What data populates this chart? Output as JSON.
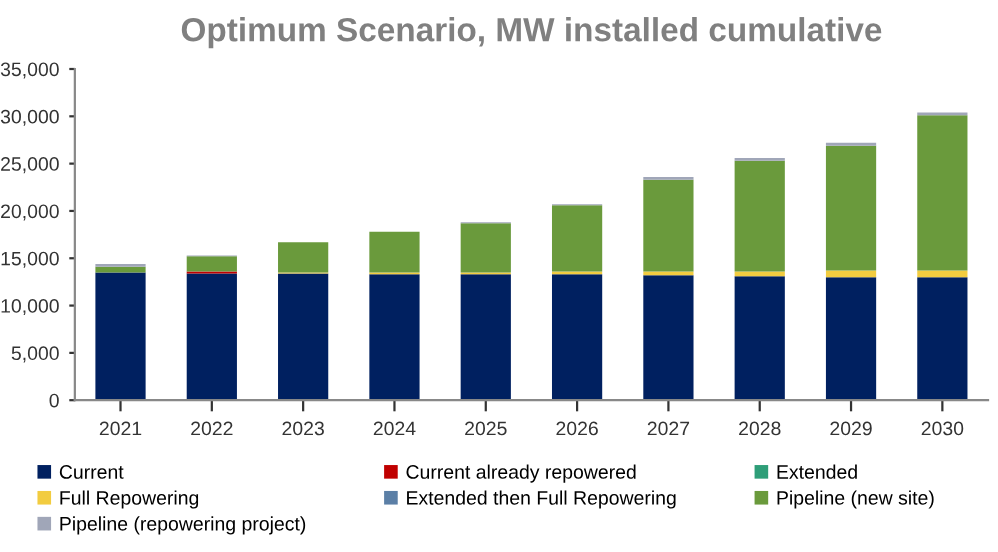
{
  "chart_data": {
    "type": "bar",
    "title": "Optimum Scenario, MW installed cumulative",
    "stacked": true,
    "categories": [
      "2021",
      "2022",
      "2023",
      "2024",
      "2025",
      "2026",
      "2027",
      "2028",
      "2029",
      "2030"
    ],
    "series": [
      {
        "name": "Current",
        "color": "#002060",
        "values": [
          13500,
          13400,
          13400,
          13300,
          13300,
          13300,
          13200,
          13100,
          13000,
          13000
        ]
      },
      {
        "name": "Current already repowered",
        "color": "#c00000",
        "values": [
          0,
          200,
          0,
          0,
          0,
          0,
          0,
          0,
          0,
          0
        ]
      },
      {
        "name": "Extended",
        "color": "#2e9e78",
        "values": [
          0,
          0,
          0,
          0,
          0,
          0,
          0,
          0,
          0,
          0
        ]
      },
      {
        "name": "Full Repowering",
        "color": "#f2cc40",
        "values": [
          0,
          0,
          100,
          200,
          200,
          300,
          400,
          500,
          700,
          700
        ]
      },
      {
        "name": "Extended then Full Repowering",
        "color": "#5b7fa6",
        "values": [
          0,
          0,
          0,
          0,
          0,
          0,
          0,
          0,
          0,
          0
        ]
      },
      {
        "name": "Pipeline (new site)",
        "color": "#6a9a3c",
        "values": [
          600,
          1600,
          3200,
          4300,
          5200,
          7000,
          9700,
          11700,
          13200,
          16400
        ]
      },
      {
        "name": "Pipeline (repowering project)",
        "color": "#a0a6b8",
        "values": [
          300,
          100,
          0,
          0,
          100,
          100,
          300,
          300,
          300,
          300
        ]
      }
    ],
    "ylim": [
      0,
      35000
    ],
    "yticks": [
      {
        "value": 0,
        "label": "0"
      },
      {
        "value": 5000,
        "label": "5,000"
      },
      {
        "value": 10000,
        "label": "10,000"
      },
      {
        "value": 15000,
        "label": "15,000"
      },
      {
        "value": 20000,
        "label": "20,000"
      },
      {
        "value": 25000,
        "label": "25,000"
      },
      {
        "value": 30000,
        "label": "30,000"
      },
      {
        "value": 35000,
        "label": "35,000"
      }
    ],
    "grid": false,
    "legend": "bottom"
  }
}
